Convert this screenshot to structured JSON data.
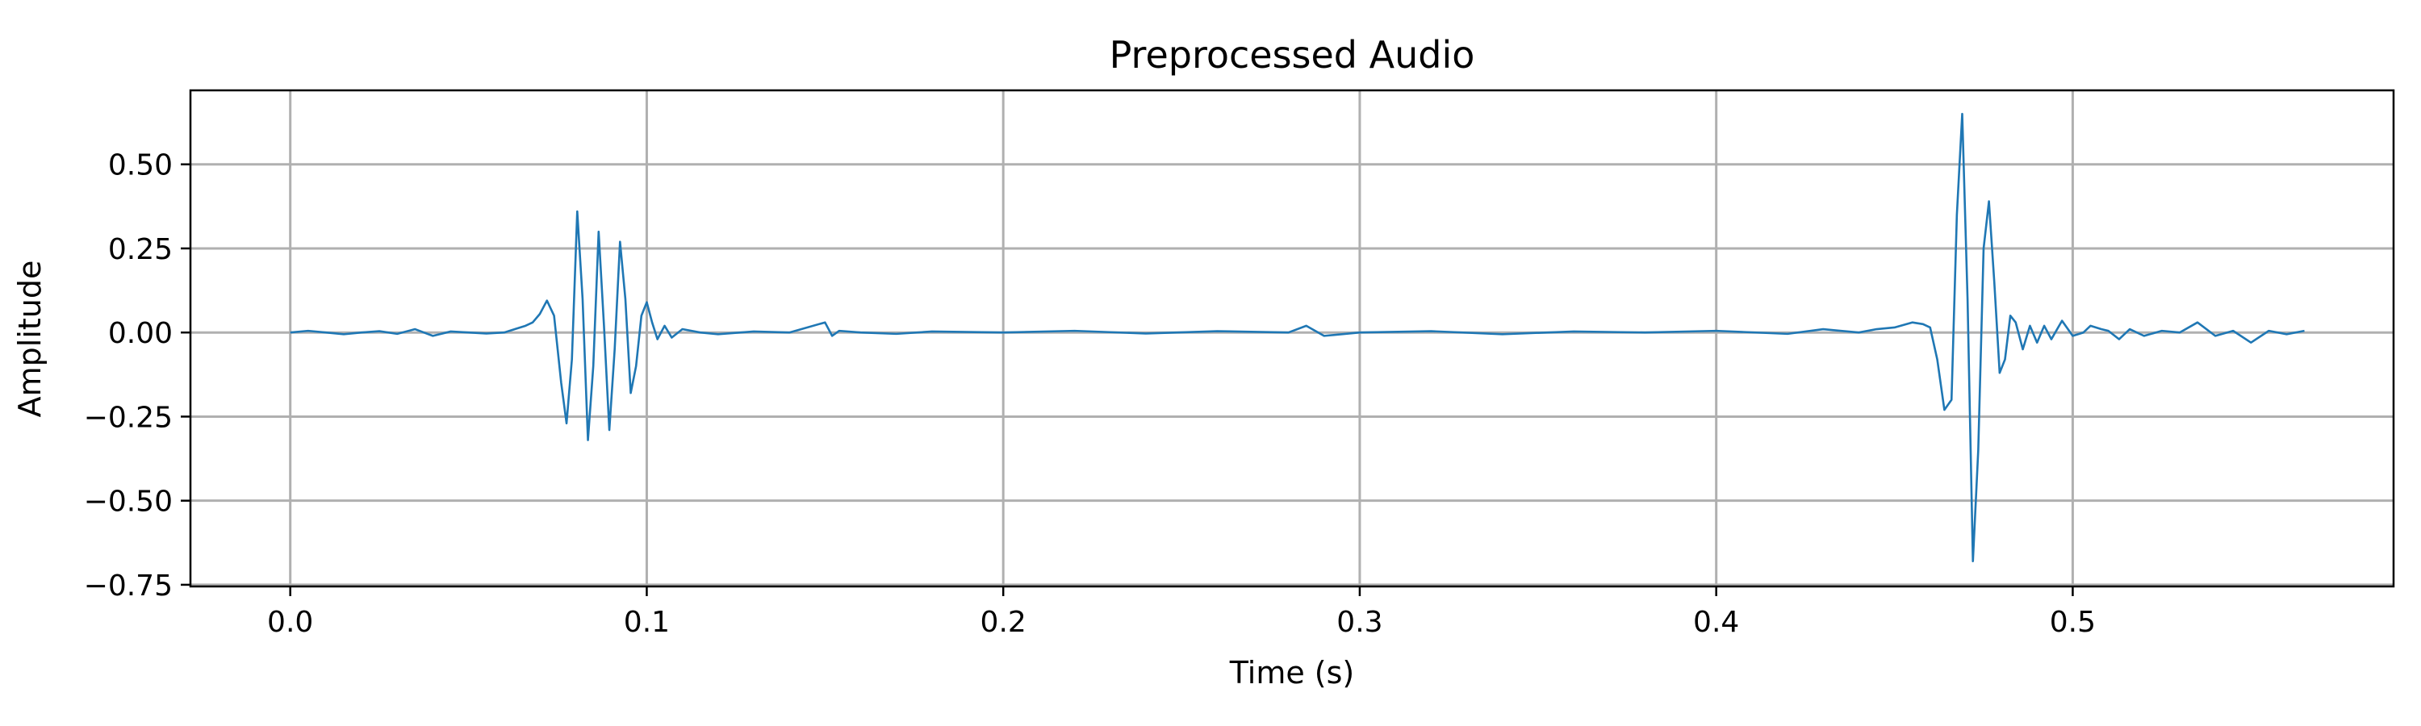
{
  "chart_data": {
    "type": "line",
    "title": "Preprocessed Audio",
    "xlabel": "Time (s)",
    "ylabel": "Amplitude",
    "xlim": [
      -0.028,
      0.59
    ],
    "ylim": [
      -0.755,
      0.72
    ],
    "x_ticks": [
      {
        "value": 0.0,
        "label": "0.0"
      },
      {
        "value": 0.1,
        "label": "0.1"
      },
      {
        "value": 0.2,
        "label": "0.2"
      },
      {
        "value": 0.3,
        "label": "0.3"
      },
      {
        "value": 0.4,
        "label": "0.4"
      },
      {
        "value": 0.5,
        "label": "0.5"
      }
    ],
    "y_ticks": [
      {
        "value": 0.5,
        "label": "0.50"
      },
      {
        "value": 0.25,
        "label": "0.25"
      },
      {
        "value": 0.0,
        "label": "0.00"
      },
      {
        "value": -0.25,
        "label": "−0.25"
      },
      {
        "value": -0.5,
        "label": "−0.50"
      },
      {
        "value": -0.75,
        "label": "−0.75"
      }
    ],
    "grid": true,
    "series": [
      {
        "color": "#1f77b4",
        "x": [
          0.0,
          0.005,
          0.01,
          0.015,
          0.02,
          0.025,
          0.03,
          0.035,
          0.04,
          0.045,
          0.05,
          0.055,
          0.06,
          0.063,
          0.066,
          0.068,
          0.07,
          0.072,
          0.074,
          0.075,
          0.076,
          0.0775,
          0.079,
          0.0805,
          0.082,
          0.0835,
          0.085,
          0.0865,
          0.088,
          0.0895,
          0.091,
          0.0925,
          0.094,
          0.0955,
          0.097,
          0.0985,
          0.1,
          0.1015,
          0.103,
          0.105,
          0.107,
          0.11,
          0.115,
          0.12,
          0.13,
          0.14,
          0.15,
          0.152,
          0.154,
          0.16,
          0.17,
          0.18,
          0.2,
          0.22,
          0.24,
          0.26,
          0.28,
          0.285,
          0.29,
          0.3,
          0.32,
          0.34,
          0.36,
          0.38,
          0.4,
          0.42,
          0.43,
          0.44,
          0.445,
          0.45,
          0.455,
          0.458,
          0.46,
          0.462,
          0.464,
          0.466,
          0.4675,
          0.469,
          0.4705,
          0.472,
          0.4735,
          0.475,
          0.4765,
          0.478,
          0.4795,
          0.481,
          0.4825,
          0.484,
          0.486,
          0.488,
          0.49,
          0.492,
          0.494,
          0.497,
          0.5,
          0.503,
          0.505,
          0.508,
          0.51,
          0.513,
          0.516,
          0.52,
          0.525,
          0.53,
          0.535,
          0.54,
          0.545,
          0.55,
          0.555,
          0.56,
          0.565
        ],
        "y": [
          0.0,
          0.005,
          0.0,
          -0.005,
          0.0,
          0.004,
          -0.004,
          0.01,
          -0.01,
          0.003,
          0.0,
          -0.003,
          0.0,
          0.01,
          0.02,
          0.03,
          0.055,
          0.095,
          0.05,
          -0.05,
          -0.15,
          -0.27,
          -0.08,
          0.36,
          0.1,
          -0.32,
          -0.1,
          0.3,
          0.02,
          -0.29,
          -0.05,
          0.27,
          0.1,
          -0.18,
          -0.1,
          0.05,
          0.09,
          0.03,
          -0.02,
          0.02,
          -0.015,
          0.01,
          0.0,
          -0.005,
          0.003,
          0.0,
          0.03,
          -0.01,
          0.005,
          0.0,
          -0.004,
          0.003,
          0.0,
          0.005,
          -0.003,
          0.004,
          0.0,
          0.02,
          -0.01,
          0.0,
          0.004,
          -0.005,
          0.003,
          0.0,
          0.005,
          -0.004,
          0.01,
          0.0,
          0.01,
          0.015,
          0.03,
          0.025,
          0.015,
          -0.08,
          -0.23,
          -0.2,
          0.35,
          0.65,
          0.1,
          -0.68,
          -0.35,
          0.25,
          0.39,
          0.15,
          -0.12,
          -0.08,
          0.05,
          0.03,
          -0.05,
          0.02,
          -0.03,
          0.02,
          -0.02,
          0.035,
          -0.01,
          0.0,
          0.02,
          0.01,
          0.005,
          -0.02,
          0.01,
          -0.01,
          0.005,
          0.0,
          0.03,
          -0.01,
          0.005,
          -0.03,
          0.005,
          -0.005,
          0.005
        ]
      }
    ]
  }
}
